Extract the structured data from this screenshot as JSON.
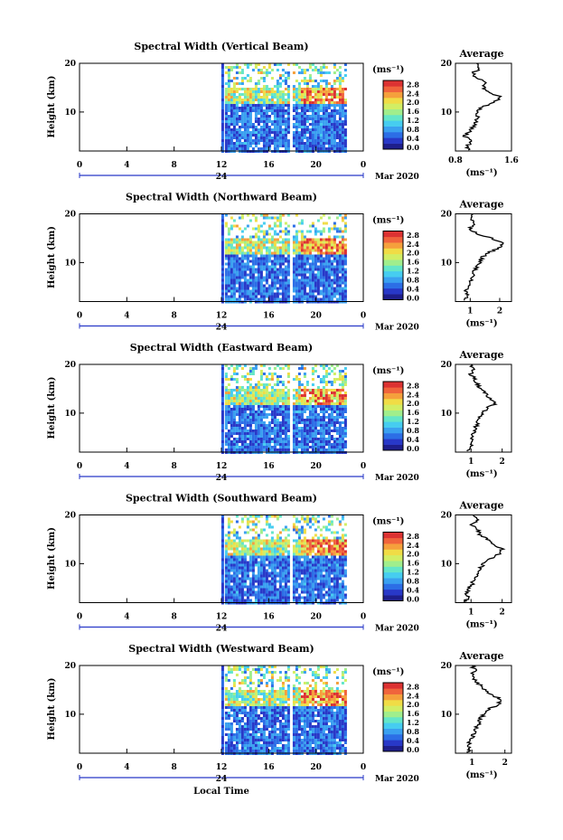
{
  "figure": {
    "date_label": "Mar 2020",
    "xlabel": "Local Time",
    "x_ticks": [
      "0",
      "4",
      "8",
      "12",
      "16",
      "20",
      "0"
    ],
    "day_tick": "24",
    "ylabel": "Height (km)",
    "y_ticks": [
      "20",
      "10"
    ],
    "unit_label": "(ms⁻¹)",
    "avg_title": "Average",
    "avg_xlabel": "(ms⁻¹)",
    "colorbar_labels": [
      "2.8",
      "2.4",
      "2.0",
      "1.6",
      "1.2",
      "0.8",
      "0.4",
      "0.0"
    ],
    "colorscale": [
      "#1e1e8c",
      "#2838c8",
      "#2c6ee6",
      "#3aa0f0",
      "#46cdf0",
      "#64e6c8",
      "#a0ee8c",
      "#d2ee64",
      "#f0dc46",
      "#f5a03c",
      "#f0643c",
      "#dc3232"
    ]
  },
  "chart_data": [
    {
      "type": "heatmap",
      "title": "Spectral Width (Vertical Beam)",
      "xlabel": "Local Time",
      "ylabel": "Height (km)",
      "xlim": [
        0,
        24
      ],
      "ylim": [
        2,
        20
      ],
      "clim": [
        0.0,
        2.8
      ],
      "data_coverage_hours": [
        12.3,
        22.6
      ],
      "gap_hours": [
        17.7,
        18.0
      ],
      "average_profile": {
        "xlim": [
          0.8,
          1.6
        ],
        "x_ticks": [
          "0.8",
          "1.6"
        ],
        "y_ticks": [
          "20",
          "10"
        ],
        "points": [
          [
            1.0,
            2.2
          ],
          [
            0.95,
            3
          ],
          [
            1.05,
            4
          ],
          [
            0.92,
            5
          ],
          [
            1.0,
            6
          ],
          [
            1.05,
            7
          ],
          [
            1.1,
            8
          ],
          [
            1.12,
            9
          ],
          [
            1.1,
            10
          ],
          [
            1.18,
            11
          ],
          [
            1.35,
            12
          ],
          [
            1.45,
            13
          ],
          [
            1.3,
            14
          ],
          [
            1.2,
            15
          ],
          [
            1.25,
            16
          ],
          [
            1.1,
            17
          ],
          [
            1.05,
            18
          ],
          [
            1.15,
            19
          ],
          [
            1.1,
            20
          ]
        ]
      }
    },
    {
      "type": "heatmap",
      "title": "Spectral Width (Northward Beam)",
      "xlabel": "Local Time",
      "ylabel": "Height (km)",
      "xlim": [
        0,
        24
      ],
      "ylim": [
        2,
        20
      ],
      "clim": [
        0.0,
        2.8
      ],
      "data_coverage_hours": [
        12.3,
        22.6
      ],
      "gap_hours": [
        17.7,
        18.0
      ],
      "average_profile": {
        "xlim": [
          0.5,
          2.4
        ],
        "x_ticks": [
          "1",
          "2"
        ],
        "y_ticks": [
          "20",
          "10"
        ],
        "points": [
          [
            0.8,
            2.2
          ],
          [
            0.9,
            3
          ],
          [
            0.85,
            4
          ],
          [
            0.95,
            5
          ],
          [
            1.0,
            6
          ],
          [
            1.05,
            7
          ],
          [
            1.1,
            8
          ],
          [
            1.2,
            9
          ],
          [
            1.3,
            10
          ],
          [
            1.4,
            11
          ],
          [
            1.6,
            12
          ],
          [
            2.0,
            13
          ],
          [
            2.1,
            14
          ],
          [
            1.7,
            15
          ],
          [
            1.2,
            16
          ],
          [
            1.0,
            17
          ],
          [
            1.1,
            18
          ],
          [
            1.0,
            19
          ],
          [
            1.1,
            20
          ]
        ]
      }
    },
    {
      "type": "heatmap",
      "title": "Spectral Width (Eastward Beam)",
      "xlabel": "Local Time",
      "ylabel": "Height (km)",
      "xlim": [
        0,
        24
      ],
      "ylim": [
        2,
        20
      ],
      "clim": [
        0.0,
        2.8
      ],
      "data_coverage_hours": [
        12.3,
        22.6
      ],
      "gap_hours": [
        17.7,
        18.0
      ],
      "average_profile": {
        "xlim": [
          0.5,
          2.3
        ],
        "x_ticks": [
          "1",
          "2"
        ],
        "y_ticks": [
          "20",
          "10"
        ],
        "points": [
          [
            0.9,
            2.2
          ],
          [
            1.0,
            3
          ],
          [
            0.95,
            4
          ],
          [
            1.05,
            5
          ],
          [
            1.1,
            6
          ],
          [
            1.15,
            7
          ],
          [
            1.2,
            8
          ],
          [
            1.25,
            9
          ],
          [
            1.35,
            10
          ],
          [
            1.5,
            11
          ],
          [
            1.8,
            12
          ],
          [
            1.6,
            13
          ],
          [
            1.5,
            14
          ],
          [
            1.3,
            15
          ],
          [
            1.2,
            16
          ],
          [
            1.1,
            17
          ],
          [
            1.0,
            18
          ],
          [
            1.1,
            19
          ],
          [
            1.0,
            20
          ]
        ]
      }
    },
    {
      "type": "heatmap",
      "title": "Spectral Width (Southward Beam)",
      "xlabel": "Local Time",
      "ylabel": "Height (km)",
      "xlim": [
        0,
        24
      ],
      "ylim": [
        2,
        20
      ],
      "clim": [
        0.0,
        2.8
      ],
      "data_coverage_hours": [
        12.3,
        22.6
      ],
      "gap_hours": [
        17.7,
        18.0
      ],
      "average_profile": {
        "xlim": [
          0.5,
          2.3
        ],
        "x_ticks": [
          "1",
          "2"
        ],
        "y_ticks": [
          "20",
          "10"
        ],
        "points": [
          [
            0.8,
            2.2
          ],
          [
            0.9,
            3
          ],
          [
            0.85,
            4
          ],
          [
            0.95,
            5
          ],
          [
            1.05,
            6
          ],
          [
            1.1,
            7
          ],
          [
            1.2,
            8
          ],
          [
            1.3,
            9
          ],
          [
            1.4,
            10
          ],
          [
            1.6,
            11
          ],
          [
            1.9,
            12
          ],
          [
            2.0,
            13
          ],
          [
            1.7,
            14
          ],
          [
            1.5,
            15
          ],
          [
            1.3,
            16
          ],
          [
            1.2,
            17
          ],
          [
            1.0,
            18
          ],
          [
            1.2,
            19
          ],
          [
            1.1,
            20
          ]
        ]
      }
    },
    {
      "type": "heatmap",
      "title": "Spectral Width (Westward Beam)",
      "xlabel": "Local Time",
      "ylabel": "Height (km)",
      "xlim": [
        0,
        24
      ],
      "ylim": [
        2,
        20
      ],
      "clim": [
        0.0,
        2.8
      ],
      "data_coverage_hours": [
        12.3,
        22.6
      ],
      "gap_hours": [
        17.7,
        18.0
      ],
      "average_profile": {
        "xlim": [
          0.5,
          2.2
        ],
        "x_ticks": [
          "1",
          "2"
        ],
        "y_ticks": [
          "20",
          "10"
        ],
        "points": [
          [
            0.85,
            2.2
          ],
          [
            0.95,
            3
          ],
          [
            0.9,
            4
          ],
          [
            1.0,
            5
          ],
          [
            1.05,
            6
          ],
          [
            1.1,
            7
          ],
          [
            1.2,
            8
          ],
          [
            1.25,
            9
          ],
          [
            1.35,
            10
          ],
          [
            1.5,
            11
          ],
          [
            1.8,
            12
          ],
          [
            1.9,
            13
          ],
          [
            1.6,
            14
          ],
          [
            1.4,
            15
          ],
          [
            1.25,
            16
          ],
          [
            1.1,
            17
          ],
          [
            1.0,
            18
          ],
          [
            1.1,
            19
          ],
          [
            1.0,
            20
          ]
        ]
      }
    }
  ]
}
